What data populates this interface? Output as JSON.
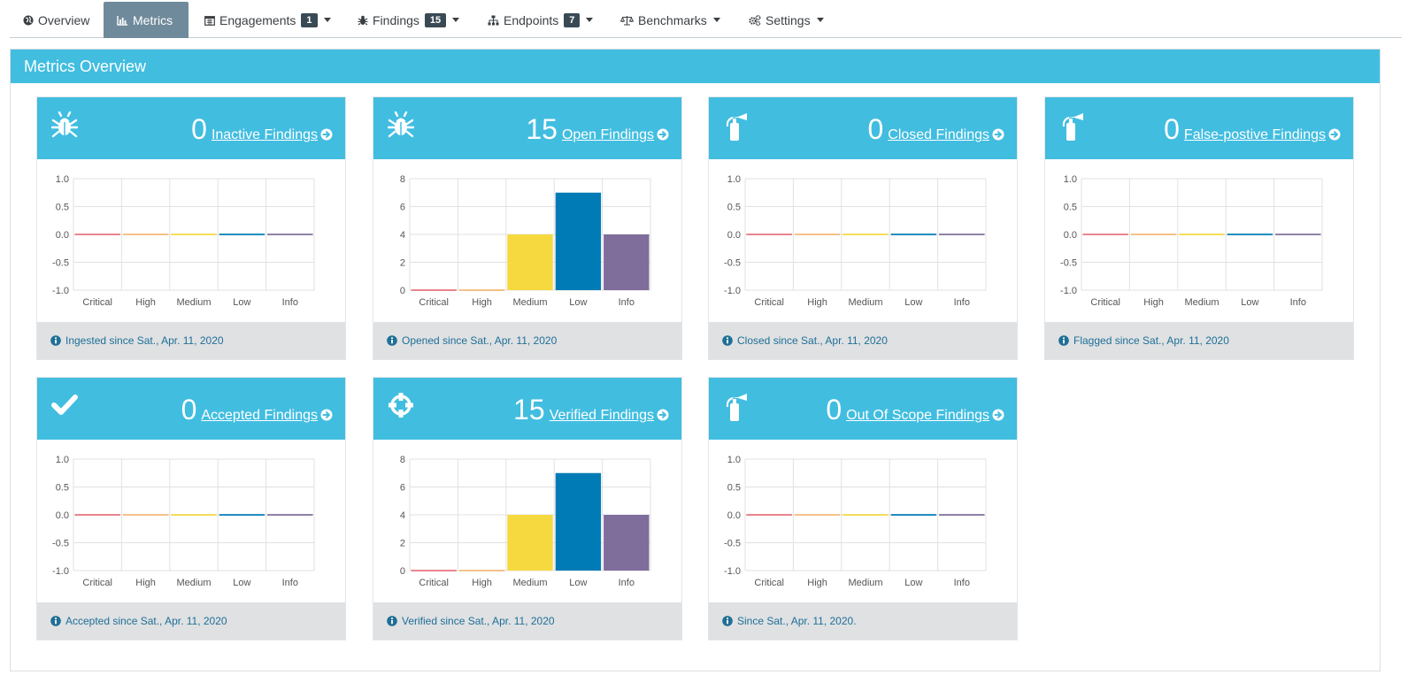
{
  "nav": {
    "tabs": [
      {
        "name": "overview",
        "label": "Overview",
        "icon": "globe-icon",
        "active": false
      },
      {
        "name": "metrics",
        "label": "Metrics",
        "icon": "bar-chart-icon",
        "active": true
      },
      {
        "name": "engagements",
        "label": "Engagements",
        "icon": "calendar-icon",
        "count": "1",
        "dropdown": true
      },
      {
        "name": "findings",
        "label": "Findings",
        "icon": "bug-icon",
        "count": "15",
        "dropdown": true
      },
      {
        "name": "endpoints",
        "label": "Endpoints",
        "icon": "sitemap-icon",
        "count": "7",
        "dropdown": true
      },
      {
        "name": "benchmarks",
        "label": "Benchmarks",
        "icon": "balance-scale-icon",
        "dropdown": true
      },
      {
        "name": "settings",
        "label": "Settings",
        "icon": "gears-icon",
        "dropdown": true
      }
    ]
  },
  "panel": {
    "title": "Metrics Overview"
  },
  "colors": {
    "accent": "#41bde0",
    "critical": "#e7717d",
    "high": "#f7b977",
    "medium": "#f6d83f",
    "low": "#007bb5",
    "info": "#7f6d9b",
    "footer_text": "#1f6f96"
  },
  "cards": [
    {
      "count": "0",
      "link": "Inactive Findings",
      "icon": "bug-icon",
      "footer": "Ingested since Sat., Apr. 11, 2020"
    },
    {
      "count": "15",
      "link": "Open Findings",
      "icon": "bug-icon",
      "footer": "Opened since Sat., Apr. 11, 2020"
    },
    {
      "count": "0",
      "link": "Closed Findings",
      "icon": "fire-extinguisher-icon",
      "footer": "Closed since Sat., Apr. 11, 2020"
    },
    {
      "count": "0",
      "link": "False-postive Findings",
      "icon": "fire-extinguisher-icon",
      "footer": "Flagged since Sat., Apr. 11, 2020"
    },
    {
      "count": "0",
      "link": "Accepted Findings",
      "icon": "check-icon",
      "footer": "Accepted since Sat., Apr. 11, 2020"
    },
    {
      "count": "15",
      "link": "Verified Findings",
      "icon": "crosshairs-icon",
      "footer": "Verified since Sat., Apr. 11, 2020"
    },
    {
      "count": "0",
      "link": "Out Of Scope Findings",
      "icon": "fire-extinguisher-icon",
      "footer": "Since Sat., Apr. 11, 2020."
    }
  ],
  "chart_data": [
    {
      "type": "bar",
      "title": "Inactive Findings",
      "categories": [
        "Critical",
        "High",
        "Medium",
        "Low",
        "Info"
      ],
      "values": [
        0,
        0,
        0,
        0,
        0
      ],
      "ylim": [
        -1.0,
        1.0
      ],
      "yticks": [
        "1.0",
        "0.5",
        "0.0",
        "-0.5",
        "-1.0"
      ],
      "grid": true
    },
    {
      "type": "bar",
      "title": "Open Findings",
      "categories": [
        "Critical",
        "High",
        "Medium",
        "Low",
        "Info"
      ],
      "values": [
        0,
        0,
        4,
        7,
        4
      ],
      "ylim": [
        0,
        8
      ],
      "yticks": [
        "8",
        "6",
        "4",
        "2",
        "0"
      ],
      "grid": true
    },
    {
      "type": "bar",
      "title": "Closed Findings",
      "categories": [
        "Critical",
        "High",
        "Medium",
        "Low",
        "Info"
      ],
      "values": [
        0,
        0,
        0,
        0,
        0
      ],
      "ylim": [
        -1.0,
        1.0
      ],
      "yticks": [
        "1.0",
        "0.5",
        "0.0",
        "-0.5",
        "-1.0"
      ],
      "grid": true
    },
    {
      "type": "bar",
      "title": "False-postive Findings",
      "categories": [
        "Critical",
        "High",
        "Medium",
        "Low",
        "Info"
      ],
      "values": [
        0,
        0,
        0,
        0,
        0
      ],
      "ylim": [
        -1.0,
        1.0
      ],
      "yticks": [
        "1.0",
        "0.5",
        "0.0",
        "-0.5",
        "-1.0"
      ],
      "grid": true
    },
    {
      "type": "bar",
      "title": "Accepted Findings",
      "categories": [
        "Critical",
        "High",
        "Medium",
        "Low",
        "Info"
      ],
      "values": [
        0,
        0,
        0,
        0,
        0
      ],
      "ylim": [
        -1.0,
        1.0
      ],
      "yticks": [
        "1.0",
        "0.5",
        "0.0",
        "-0.5",
        "-1.0"
      ],
      "grid": true
    },
    {
      "type": "bar",
      "title": "Verified Findings",
      "categories": [
        "Critical",
        "High",
        "Medium",
        "Low",
        "Info"
      ],
      "values": [
        0,
        0,
        4,
        7,
        4
      ],
      "ylim": [
        0,
        8
      ],
      "yticks": [
        "8",
        "6",
        "4",
        "2",
        "0"
      ],
      "grid": true
    },
    {
      "type": "bar",
      "title": "Out Of Scope Findings",
      "categories": [
        "Critical",
        "High",
        "Medium",
        "Low",
        "Info"
      ],
      "values": [
        0,
        0,
        0,
        0,
        0
      ],
      "ylim": [
        -1.0,
        1.0
      ],
      "yticks": [
        "1.0",
        "0.5",
        "0.0",
        "-0.5",
        "-1.0"
      ],
      "grid": true
    }
  ]
}
